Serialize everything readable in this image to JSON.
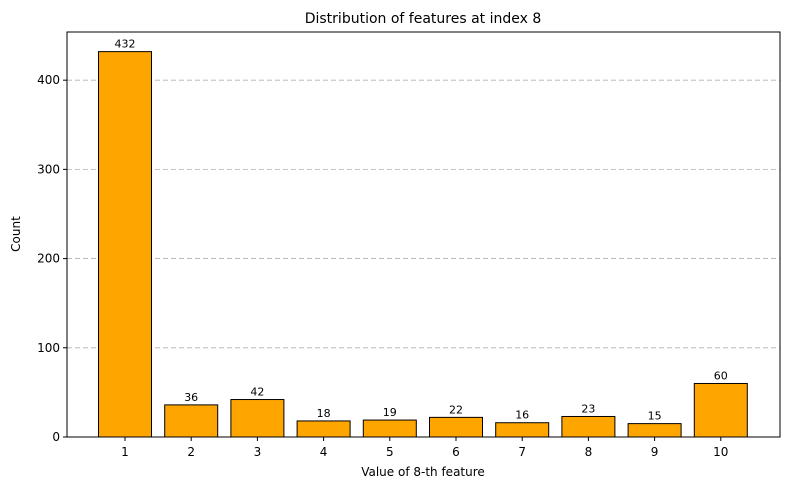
{
  "chart_data": {
    "type": "bar",
    "title": "Distribution of features at index 8",
    "xlabel": "Value of 8-th feature",
    "ylabel": "Count",
    "categories": [
      "1",
      "2",
      "3",
      "4",
      "5",
      "6",
      "7",
      "8",
      "9",
      "10"
    ],
    "values": [
      432,
      36,
      42,
      18,
      19,
      22,
      16,
      23,
      15,
      60
    ],
    "ylim": [
      0,
      454
    ],
    "yticks": [
      0,
      100,
      200,
      300,
      400
    ],
    "grid": "y-dashed",
    "bar_color": "#ffa500",
    "edge_color": "#000000",
    "data_labels": true
  }
}
